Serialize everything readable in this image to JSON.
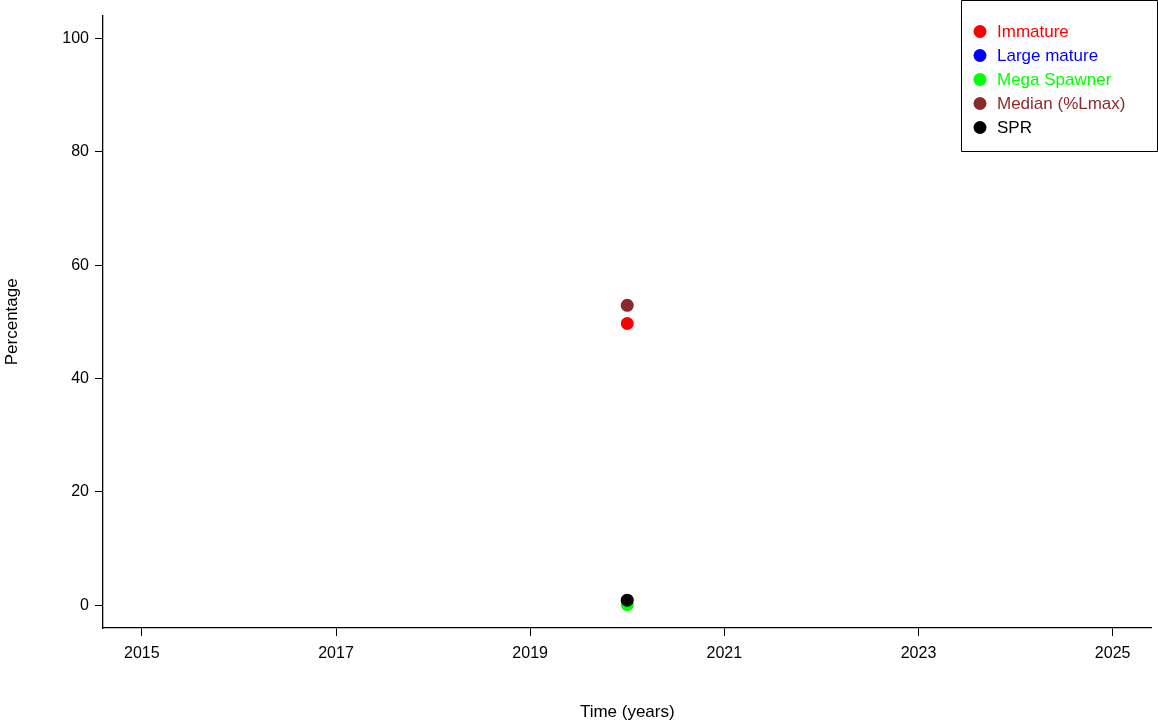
{
  "chart_data": {
    "type": "scatter",
    "xlabel": "Time (years)",
    "ylabel": "Percentage",
    "xlim": [
      2014.6,
      2025.4
    ],
    "xticks": [
      2015,
      2017,
      2019,
      2021,
      2023,
      2025
    ],
    "ylim": [
      -4,
      104
    ],
    "yticks": [
      0,
      20,
      40,
      60,
      80,
      100
    ],
    "x": [
      2020
    ],
    "grid": false,
    "legend": "top right",
    "marker": "circle",
    "series": [
      {
        "name": "Immature",
        "color": "#ff0000",
        "values": [
          49.7
        ]
      },
      {
        "name": "Large mature",
        "color": "#0000ff",
        "values": [
          null
        ]
      },
      {
        "name": "Mega Spawner",
        "color": "#00ff00",
        "values": [
          0.1
        ]
      },
      {
        "name": "Median (%Lmax)",
        "color": "#8b2a2a",
        "values": [
          52.9
        ]
      },
      {
        "name": "SPR",
        "color": "#000000",
        "values": [
          0.9
        ]
      }
    ]
  }
}
